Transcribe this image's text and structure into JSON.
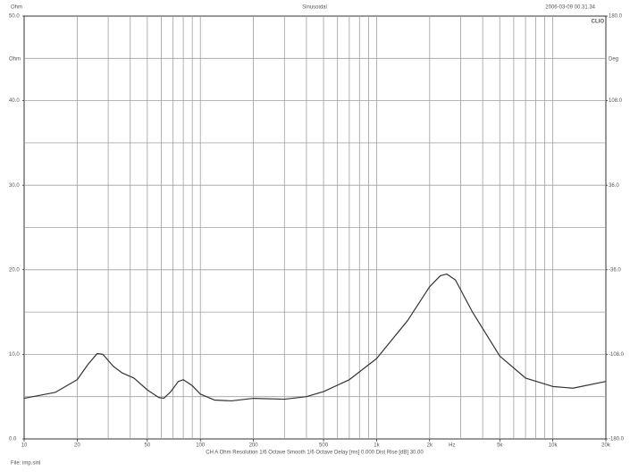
{
  "header": {
    "left": "Ohm",
    "right": "2006-03-09 00.31.34",
    "brand": "CLIO"
  },
  "footer": "CH A   Ohm   Resolution 1/6 Octave   Smooth 1/6 Octave   Delay [ms] 0.000   Dist Rise [dB] 30.00",
  "file": "File: imp.sinl",
  "chart_data": {
    "type": "line",
    "title": "Sinusoidal",
    "ylabel": "Ohm",
    "y2label": "Deg",
    "xlabel": "Hz",
    "log_x": true,
    "grid": true,
    "xlim": [
      10,
      20000
    ],
    "ylim": [
      0,
      50
    ],
    "y2lim": [
      -180,
      180
    ],
    "xticks": [
      10,
      20,
      50,
      100,
      200,
      500,
      {
        "value": 1000,
        "label": "1k"
      },
      {
        "value": 2000,
        "label": "2k"
      },
      {
        "value": 5000,
        "label": "5k"
      },
      {
        "value": 10000,
        "label": "10k"
      },
      {
        "value": 20000,
        "label": "20k"
      }
    ],
    "xgrid": [
      20,
      30,
      40,
      50,
      60,
      70,
      80,
      90,
      100,
      200,
      300,
      400,
      500,
      600,
      700,
      800,
      900,
      1000,
      2000,
      3000,
      4000,
      5000,
      6000,
      7000,
      8000,
      9000,
      10000
    ],
    "yticks": [
      {
        "value": 0,
        "label": "0.0"
      },
      {
        "value": 10,
        "label": "10.0"
      },
      {
        "value": 20,
        "label": "20.0"
      },
      {
        "value": 30,
        "label": "30.0"
      },
      {
        "value": 40,
        "label": "40.0"
      },
      {
        "value": 50,
        "label": "50.0"
      }
    ],
    "ygrid": [
      5,
      10,
      15,
      20,
      25,
      30,
      35,
      40,
      45
    ],
    "y2ticks": [
      {
        "value": -180,
        "label": "-180.0"
      },
      {
        "value": -108,
        "label": "-108.0"
      },
      {
        "value": -36,
        "label": "-36.0"
      },
      {
        "value": 36,
        "label": "36.0"
      },
      {
        "value": 108,
        "label": "108.0"
      },
      {
        "value": 180,
        "label": "180.0"
      }
    ],
    "x": [
      10,
      15,
      20,
      23,
      26,
      28,
      32,
      36,
      42,
      50,
      58,
      62,
      68,
      75,
      80,
      90,
      100,
      120,
      150,
      200,
      300,
      400,
      500,
      700,
      1000,
      1500,
      2000,
      2300,
      2500,
      2800,
      3500,
      5000,
      7000,
      10000,
      13000,
      20000
    ],
    "series": [
      {
        "name": "Ohm",
        "color": "#333333",
        "values": [
          4.8,
          5.5,
          7.0,
          8.8,
          10.1,
          10.0,
          8.6,
          7.8,
          7.2,
          5.8,
          4.9,
          4.8,
          5.6,
          6.8,
          7.0,
          6.3,
          5.3,
          4.6,
          4.5,
          4.8,
          4.7,
          5.0,
          5.6,
          7.0,
          9.5,
          14.0,
          18.0,
          19.3,
          19.5,
          18.8,
          15.0,
          9.8,
          7.2,
          6.2,
          6.0,
          6.8
        ]
      }
    ]
  }
}
